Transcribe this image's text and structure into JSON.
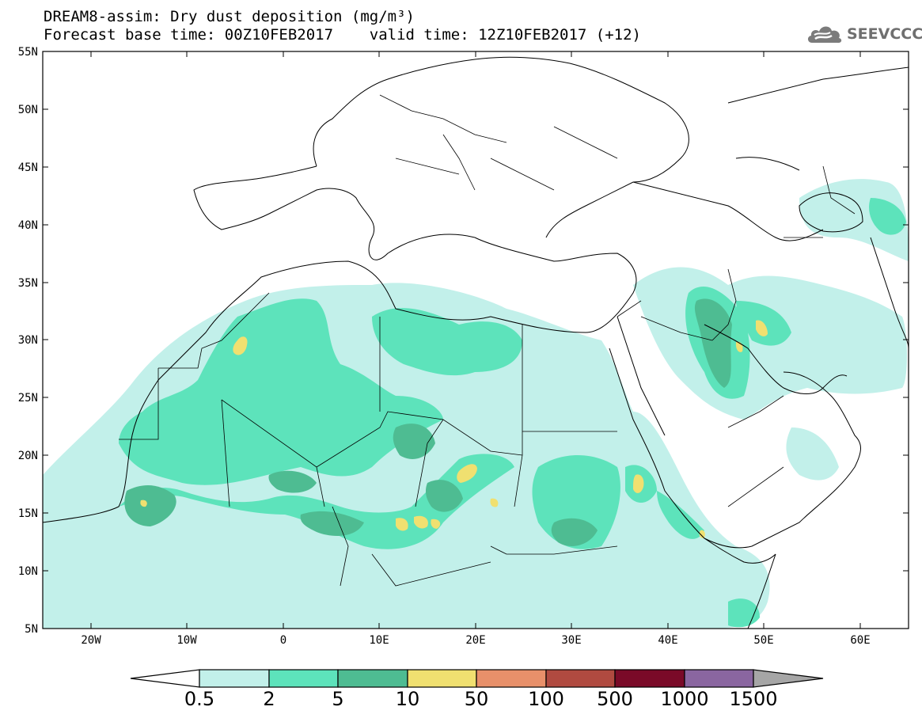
{
  "title": {
    "line1": "DREAM8-assim: Dry dust deposition (mg/m³)",
    "line2": "Forecast base time: 00Z10FEB2017    valid time: 12Z10FEB2017 (+12)"
  },
  "logo": {
    "text": "SEEVCCC",
    "icon": "cloud-logo-icon"
  },
  "map": {
    "lon_range": [
      -25,
      65
    ],
    "lat_range": [
      5,
      55
    ],
    "lat_ticks": [
      "5N",
      "10N",
      "15N",
      "20N",
      "25N",
      "30N",
      "35N",
      "40N",
      "45N",
      "50N",
      "55N"
    ],
    "lon_ticks": [
      "20W",
      "10W",
      "0",
      "10E",
      "20E",
      "30E",
      "40E",
      "50E",
      "60E"
    ]
  },
  "legend": {
    "labels": [
      "0.5",
      "2",
      "5",
      "10",
      "50",
      "100",
      "500",
      "1000",
      "1500"
    ],
    "colors": [
      "#c2f0ea",
      "#5de3bb",
      "#4ebc92",
      "#f0e070",
      "#e8906a",
      "#b04a40",
      "#7a0a28",
      "#8a66a0"
    ],
    "under_color": "#ffffff",
    "over_color": "#a6a6a6"
  }
}
